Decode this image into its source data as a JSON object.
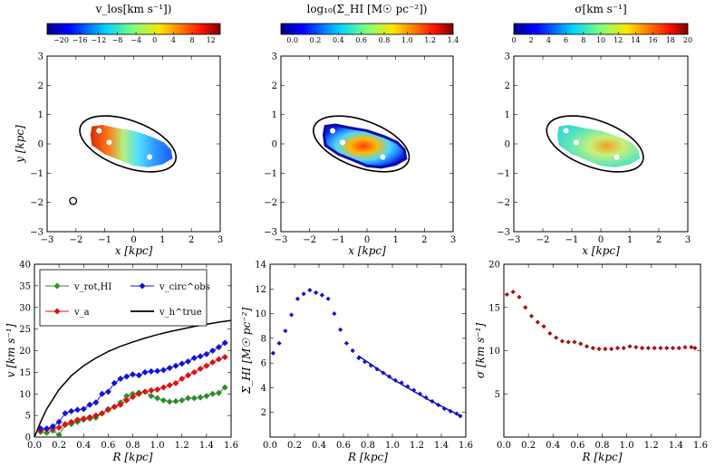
{
  "chart_data": [
    {
      "type": "heatmap",
      "colorbar_label": "v_los[km s⁻¹])",
      "colorbar_ticks": [
        "−20",
        "−16",
        "−12",
        "−8",
        "−4",
        "0",
        "4",
        "8",
        "12"
      ],
      "colorbar_range": [
        -23,
        14
      ],
      "xlabel": "x [kpc]",
      "ylabel": "y [kpc]",
      "xlim": [
        -3,
        3
      ],
      "ylim": [
        -3,
        3
      ],
      "x_ticks": [
        "−3",
        "−2",
        "−1",
        "0",
        "1",
        "2",
        "3"
      ],
      "y_ticks": [
        "−3",
        "−2",
        "−1",
        "0",
        "1",
        "2",
        "3"
      ],
      "colormap": "jet",
      "ellipse": {
        "center": [
          -0.2,
          0.0
        ],
        "semi_major": 1.75,
        "semi_minor": 0.8,
        "angle_deg": -20
      },
      "beam": {
        "center": [
          -2.1,
          -1.95
        ],
        "radius": 0.12
      }
    },
    {
      "type": "heatmap",
      "colorbar_label": "log₁₀(Σ_HI [M☉ pc⁻²])",
      "colorbar_ticks": [
        "0.0",
        "0.2",
        "0.4",
        "0.6",
        "0.8",
        "1.0",
        "1.2",
        "1.4"
      ],
      "colorbar_range": [
        -0.1,
        1.4
      ],
      "xlabel": "x [kpc]",
      "ylabel": "",
      "xlim": [
        -3,
        3
      ],
      "ylim": [
        -3,
        3
      ],
      "x_ticks": [
        "−3",
        "−2",
        "−1",
        "0",
        "1",
        "2",
        "3"
      ],
      "y_ticks": [
        "−3",
        "−2",
        "−1",
        "0",
        "1",
        "2",
        "3"
      ],
      "colormap": "jet",
      "ellipse": {
        "center": [
          -0.2,
          0.0
        ],
        "semi_major": 1.75,
        "semi_minor": 0.8,
        "angle_deg": -20
      }
    },
    {
      "type": "heatmap",
      "colorbar_label": "σ[km s⁻¹]",
      "colorbar_ticks": [
        "0",
        "2",
        "4",
        "6",
        "8",
        "10",
        "12",
        "14",
        "16",
        "18",
        "20"
      ],
      "colorbar_range": [
        0,
        20
      ],
      "xlabel": "x [kpc]",
      "ylabel": "",
      "xlim": [
        -3,
        3
      ],
      "ylim": [
        -3,
        3
      ],
      "x_ticks": [
        "−3",
        "−2",
        "−1",
        "0",
        "1",
        "2",
        "3"
      ],
      "y_ticks": [
        "−3",
        "−2",
        "−1",
        "0",
        "1",
        "2",
        "3"
      ],
      "colormap": "jet",
      "ellipse": {
        "center": [
          -0.2,
          0.0
        ],
        "semi_major": 1.75,
        "semi_minor": 0.8,
        "angle_deg": -20
      }
    },
    {
      "type": "line",
      "xlabel": "R [kpc]",
      "ylabel": "v [km s⁻¹]",
      "xlim": [
        0,
        1.6
      ],
      "ylim": [
        0,
        40
      ],
      "x_ticks": [
        "0.0",
        "0.2",
        "0.4",
        "0.6",
        "0.8",
        "1.0",
        "1.2",
        "1.4",
        "1.6"
      ],
      "y_ticks": [
        "0",
        "5",
        "10",
        "15",
        "20",
        "25",
        "30",
        "35",
        "40"
      ],
      "legend_position": "top",
      "series": [
        {
          "name": "v_rot,HI",
          "color": "#2e8b2e",
          "marker": "diamond",
          "x": [
            0.05,
            0.1,
            0.15,
            0.2,
            0.25,
            0.3,
            0.35,
            0.4,
            0.45,
            0.5,
            0.55,
            0.6,
            0.65,
            0.7,
            0.75,
            0.8,
            0.85,
            0.9,
            0.95,
            1.0,
            1.05,
            1.1,
            1.15,
            1.2,
            1.25,
            1.3,
            1.35,
            1.4,
            1.45,
            1.5,
            1.55
          ],
          "y": [
            1.2,
            1.0,
            1.5,
            0.5,
            2.8,
            3.0,
            3.5,
            4.0,
            4.3,
            4.5,
            5.5,
            6.5,
            7.0,
            8.0,
            9.5,
            10.0,
            10.3,
            10.5,
            9.5,
            9.0,
            8.5,
            8.2,
            8.3,
            8.5,
            9.0,
            9.0,
            9.2,
            9.5,
            10.0,
            10.2,
            11.5
          ]
        },
        {
          "name": "v_a",
          "color": "#dd1111",
          "marker": "diamond",
          "x": [
            0.05,
            0.1,
            0.15,
            0.2,
            0.25,
            0.3,
            0.35,
            0.4,
            0.45,
            0.5,
            0.55,
            0.6,
            0.65,
            0.7,
            0.75,
            0.8,
            0.85,
            0.9,
            0.95,
            1.0,
            1.05,
            1.1,
            1.15,
            1.2,
            1.25,
            1.3,
            1.35,
            1.4,
            1.45,
            1.5,
            1.55
          ],
          "y": [
            1.5,
            1.8,
            2.0,
            2.2,
            3.0,
            3.5,
            4.0,
            4.3,
            4.6,
            5.0,
            5.5,
            6.3,
            7.0,
            7.5,
            8.5,
            9.3,
            10.0,
            10.5,
            10.8,
            11.0,
            11.5,
            12.0,
            12.5,
            13.5,
            14.3,
            15.0,
            15.8,
            16.5,
            17.3,
            18.0,
            18.5
          ]
        },
        {
          "name": "v_circ^obs",
          "color": "#1111dd",
          "marker": "diamond",
          "x": [
            0.05,
            0.1,
            0.15,
            0.2,
            0.25,
            0.3,
            0.35,
            0.4,
            0.45,
            0.5,
            0.55,
            0.6,
            0.65,
            0.7,
            0.75,
            0.8,
            0.85,
            0.9,
            0.95,
            1.0,
            1.05,
            1.1,
            1.15,
            1.2,
            1.25,
            1.3,
            1.35,
            1.4,
            1.45,
            1.5,
            1.55
          ],
          "y": [
            2.0,
            2.0,
            2.5,
            3.5,
            5.5,
            6.0,
            6.3,
            6.5,
            7.5,
            8.0,
            10.0,
            10.5,
            12.5,
            13.5,
            14.0,
            14.5,
            14.3,
            15.0,
            15.2,
            15.3,
            15.5,
            16.0,
            16.5,
            17.0,
            17.5,
            18.3,
            18.7,
            19.2,
            20.0,
            20.8,
            21.8
          ]
        },
        {
          "name": "v_h^true",
          "color": "#000000",
          "marker": "none",
          "x": [
            0.0,
            0.05,
            0.1,
            0.2,
            0.3,
            0.4,
            0.5,
            0.6,
            0.7,
            0.8,
            0.9,
            1.0,
            1.1,
            1.2,
            1.3,
            1.4,
            1.5,
            1.6
          ],
          "y": [
            0.0,
            3.5,
            6.5,
            11.0,
            14.2,
            16.5,
            18.3,
            19.8,
            21.0,
            22.0,
            22.9,
            23.7,
            24.4,
            25.0,
            25.6,
            26.1,
            26.6,
            27.0
          ]
        }
      ]
    },
    {
      "type": "scatter",
      "xlabel": "R [kpc]",
      "ylabel": "Σ_HI [M☉ pc⁻²]",
      "xlim": [
        0,
        1.6
      ],
      "ylim": [
        0,
        14
      ],
      "x_ticks": [
        "0.0",
        "0.2",
        "0.4",
        "0.6",
        "0.8",
        "1.0",
        "1.2",
        "1.4",
        "1.6"
      ],
      "y_ticks": [
        "2",
        "4",
        "6",
        "8",
        "10",
        "12",
        "14"
      ],
      "series": [
        {
          "color": "#1111cc",
          "marker": "diamond",
          "x": [
            0.025,
            0.075,
            0.125,
            0.175,
            0.225,
            0.275,
            0.325,
            0.375,
            0.425,
            0.475,
            0.525,
            0.575,
            0.625,
            0.675,
            0.725,
            0.775,
            0.825,
            0.875,
            0.925,
            0.975,
            1.025,
            1.075,
            1.125,
            1.175,
            1.225,
            1.275,
            1.325,
            1.375,
            1.425,
            1.475,
            1.525,
            1.555
          ],
          "y": [
            6.8,
            7.6,
            8.6,
            9.9,
            11.2,
            11.6,
            11.9,
            11.7,
            11.5,
            11.2,
            10.0,
            8.7,
            7.6,
            7.0,
            6.4,
            6.1,
            5.8,
            5.5,
            5.2,
            4.9,
            4.6,
            4.4,
            4.1,
            3.8,
            3.5,
            3.2,
            2.9,
            2.6,
            2.3,
            2.1,
            1.9,
            1.7
          ]
        },
        {
          "color": "#1111cc",
          "marker": "none",
          "x": [
            0.72,
            1.0,
            1.3,
            1.56
          ],
          "y": [
            6.6,
            4.7,
            3.0,
            1.7
          ]
        }
      ]
    },
    {
      "type": "scatter",
      "xlabel": "R [kpc]",
      "ylabel": "σ [km s⁻¹]",
      "xlim": [
        0,
        1.6
      ],
      "ylim": [
        0,
        20
      ],
      "x_ticks": [
        "0.0",
        "0.2",
        "0.4",
        "0.6",
        "0.8",
        "1.0",
        "1.2",
        "1.4",
        "1.6"
      ],
      "y_ticks": [
        "5",
        "10",
        "15",
        "20"
      ],
      "series": [
        {
          "color": "#aa1111",
          "marker": "diamond",
          "x": [
            0.025,
            0.075,
            0.125,
            0.175,
            0.225,
            0.275,
            0.325,
            0.375,
            0.425,
            0.475,
            0.525,
            0.575,
            0.625,
            0.675,
            0.725,
            0.775,
            0.825,
            0.875,
            0.925,
            0.975,
            1.025,
            1.075,
            1.125,
            1.175,
            1.225,
            1.275,
            1.325,
            1.375,
            1.425,
            1.475,
            1.525,
            1.555
          ],
          "y": [
            16.5,
            16.8,
            16.2,
            15.0,
            14.0,
            13.3,
            12.8,
            12.0,
            11.5,
            11.1,
            11.0,
            11.0,
            10.8,
            10.5,
            10.3,
            10.2,
            10.2,
            10.2,
            10.3,
            10.3,
            10.5,
            10.4,
            10.3,
            10.3,
            10.3,
            10.3,
            10.3,
            10.3,
            10.3,
            10.4,
            10.4,
            10.3
          ]
        }
      ]
    }
  ]
}
